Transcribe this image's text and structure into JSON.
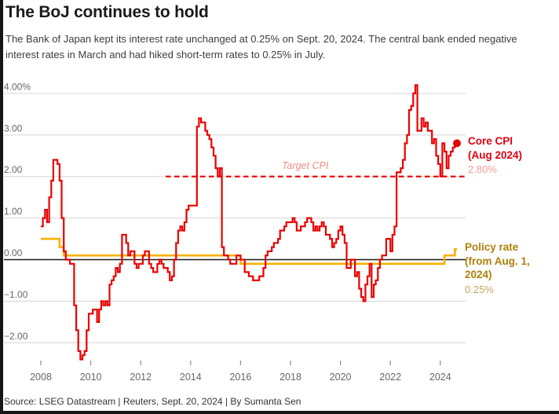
{
  "header": {
    "title": "The BoJ continues to hold",
    "subtitle": "The Bank of Japan kept its interest rate unchanged at 0.25% on Sept. 20, 2024. The central bank ended negative interest rates in March and had hiked short-term rates to 0.25% in July."
  },
  "annotations": {
    "target_label": "Target CPI",
    "core_cpi": {
      "line1": "Core CPI",
      "line2": "(Aug 2024)",
      "value": "2.80%"
    },
    "policy": {
      "line1": "Policy rate",
      "line2": "(from Aug. 1, 2024)",
      "value": "0.25%"
    }
  },
  "footer": {
    "source": "Source: LSEG Datastream | Reuters, Sept. 20, 2024 | By Sumanta Sen"
  },
  "colors": {
    "cpi_red": "#e90000",
    "faded_red": "#f59c96",
    "policy_gold": "#f7b100",
    "gold_text": "#af800a",
    "faded_gold": "#c3a75c",
    "gridline": "#d9d9d9",
    "zero_line": "#1a1a1a",
    "axis_text": "#666666"
  },
  "chart_data": {
    "type": "line",
    "title": "The BoJ continues to hold",
    "grid": true,
    "legend_position": "right-annotations",
    "y_axis": {
      "ticks": [
        "4.00%",
        "3.00",
        "2.00",
        "1.00",
        "0.00",
        "−1.00",
        "−2.00"
      ],
      "tick_values": [
        4,
        3,
        2,
        1,
        0,
        -1,
        -2
      ],
      "range": [
        -2.6,
        4.4
      ]
    },
    "x_axis": {
      "ticks": [
        "2008",
        "2010",
        "2012",
        "2014",
        "2016",
        "2018",
        "2020",
        "2022",
        "2024"
      ],
      "tick_values": [
        2008,
        2010,
        2012,
        2014,
        2016,
        2018,
        2020,
        2022,
        2024
      ],
      "range": [
        2007.5,
        2025
      ]
    },
    "target_line": {
      "label": "Target CPI",
      "value": 2.0,
      "start": "2013-01"
    },
    "series": [
      {
        "name": "Core CPI",
        "unit": "% year-on-year",
        "style": "step-monthly",
        "color": "#e90000",
        "start_year": 2008,
        "start_month": 1,
        "end_label": "2.80%",
        "values": [
          0.8,
          1.0,
          1.2,
          0.9,
          1.5,
          1.9,
          2.4,
          2.4,
          2.3,
          1.9,
          1.0,
          0.2,
          0.0,
          0.0,
          -0.1,
          -0.1,
          -1.1,
          -1.7,
          -2.2,
          -2.4,
          -2.3,
          -2.2,
          -1.7,
          -1.3,
          -1.3,
          -1.2,
          -1.2,
          -1.5,
          -1.2,
          -1.0,
          -1.1,
          -1.0,
          -1.1,
          -0.6,
          -0.5,
          -0.4,
          -0.2,
          -0.3,
          -0.1,
          0.6,
          0.6,
          0.4,
          0.1,
          0.2,
          0.2,
          -0.1,
          -0.2,
          -0.1,
          -0.1,
          0.1,
          0.2,
          0.2,
          -0.1,
          -0.2,
          -0.3,
          -0.3,
          -0.1,
          0.0,
          -0.1,
          -0.2,
          -0.2,
          -0.3,
          -0.5,
          -0.4,
          0.0,
          0.4,
          0.7,
          0.8,
          0.7,
          0.9,
          1.2,
          1.3,
          1.3,
          1.3,
          1.3,
          3.2,
          3.4,
          3.3,
          3.3,
          3.1,
          3.0,
          2.9,
          2.7,
          2.5,
          2.2,
          2.0,
          2.2,
          0.3,
          0.1,
          0.1,
          0.0,
          -0.1,
          -0.1,
          -0.1,
          0.1,
          0.1,
          0.0,
          0.0,
          -0.3,
          -0.3,
          -0.4,
          -0.4,
          -0.5,
          -0.5,
          -0.5,
          -0.4,
          -0.4,
          -0.2,
          0.1,
          0.2,
          0.2,
          0.3,
          0.4,
          0.4,
          0.5,
          0.7,
          0.7,
          0.8,
          0.9,
          0.9,
          0.9,
          1.0,
          0.9,
          0.7,
          0.7,
          0.8,
          0.8,
          0.9,
          1.0,
          1.0,
          0.9,
          0.7,
          0.8,
          0.7,
          0.8,
          0.9,
          0.8,
          0.6,
          0.6,
          0.5,
          0.3,
          0.4,
          0.5,
          0.7,
          0.8,
          0.6,
          0.4,
          -0.2,
          -0.2,
          0.0,
          0.0,
          -0.4,
          -0.3,
          -0.7,
          -0.9,
          -1.0,
          -0.6,
          -0.4,
          -0.1,
          -0.9,
          -0.6,
          -0.5,
          -0.2,
          0.0,
          0.1,
          0.1,
          0.5,
          0.5,
          0.2,
          0.6,
          0.8,
          2.1,
          2.1,
          2.2,
          2.4,
          2.8,
          3.0,
          3.6,
          3.7,
          4.0,
          4.2,
          3.1,
          3.1,
          3.4,
          3.2,
          3.3,
          3.1,
          3.1,
          2.8,
          2.9,
          2.5,
          2.3,
          2.0,
          2.8,
          2.6,
          2.2,
          2.5,
          2.6,
          2.7,
          2.8
        ]
      },
      {
        "name": "Policy rate",
        "unit": "%",
        "style": "step-segments",
        "color": "#f7b100",
        "end": "2024-09",
        "end_label": "0.25%",
        "segments": [
          {
            "start": "2008-01",
            "value": 0.5
          },
          {
            "start": "2008-10",
            "value": 0.3
          },
          {
            "start": "2008-12",
            "value": 0.1
          },
          {
            "start": "2016-01",
            "value": -0.1
          },
          {
            "start": "2024-03",
            "value": 0.1
          },
          {
            "start": "2024-08",
            "value": 0.25
          }
        ]
      }
    ]
  }
}
